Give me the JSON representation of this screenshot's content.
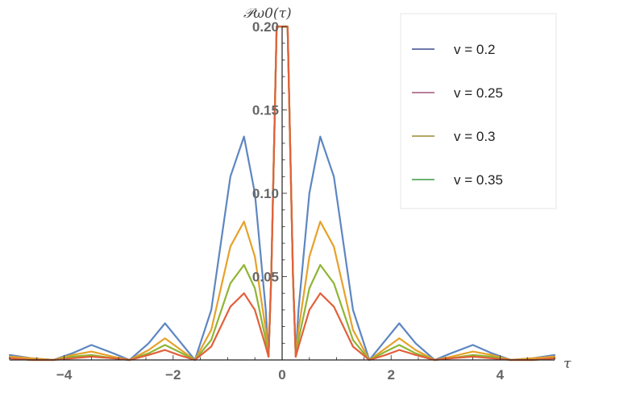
{
  "chart_data": {
    "type": "line",
    "title": "",
    "xlabel": "τ",
    "ylabel": "𝒫ω0(τ)",
    "xlim": [
      -5,
      5
    ],
    "ylim": [
      0,
      0.2
    ],
    "x_ticks": [
      -4,
      -2,
      0,
      2,
      4
    ],
    "x_tick_labels": [
      "−4",
      "−2",
      "0",
      "2",
      "4"
    ],
    "y_ticks": [
      0.05,
      0.1,
      0.15,
      0.2
    ],
    "y_tick_labels": [
      "0.05",
      "0.10",
      "0.15",
      "0.20"
    ],
    "grid": false,
    "legend_position": "top-right",
    "legend": [
      {
        "label": "v = 0.2",
        "color": "#3d4a8f"
      },
      {
        "label": "v = 0.25",
        "color": "#a0527a"
      },
      {
        "label": "v = 0.3",
        "color": "#9c8a2e"
      },
      {
        "label": "v = 0.35",
        "color": "#3c9a45"
      }
    ],
    "series": [
      {
        "color": "#5e86c1",
        "x": [
          -5.0,
          -4.6,
          -4.2,
          -3.85,
          -3.5,
          -3.1,
          -2.8,
          -2.45,
          -2.15,
          -1.9,
          -1.6,
          -1.3,
          -0.95,
          -0.7,
          -0.5,
          -0.3,
          -0.25,
          -0.2,
          -0.1,
          0.0,
          0.1,
          0.2,
          0.25,
          0.3,
          0.5,
          0.7,
          0.95,
          1.3,
          1.6,
          1.9,
          2.15,
          2.45,
          2.8,
          3.1,
          3.5,
          3.85,
          4.2,
          4.6,
          5.0
        ],
        "y": [
          0.003,
          0.001,
          0.0,
          0.004,
          0.009,
          0.004,
          0.0,
          0.01,
          0.022,
          0.012,
          0.0,
          0.03,
          0.11,
          0.134,
          0.1,
          0.03,
          0.002,
          0.05,
          0.2,
          0.2,
          0.2,
          0.05,
          0.002,
          0.03,
          0.1,
          0.134,
          0.11,
          0.03,
          0.0,
          0.012,
          0.022,
          0.01,
          0.0,
          0.004,
          0.009,
          0.004,
          0.0,
          0.001,
          0.003
        ]
      },
      {
        "color": "#e6a12a",
        "x": [
          -5.0,
          -4.6,
          -4.2,
          -3.85,
          -3.5,
          -3.1,
          -2.8,
          -2.45,
          -2.15,
          -1.9,
          -1.6,
          -1.3,
          -0.95,
          -0.7,
          -0.5,
          -0.3,
          -0.25,
          -0.2,
          -0.1,
          0.0,
          0.1,
          0.2,
          0.25,
          0.3,
          0.5,
          0.7,
          0.95,
          1.3,
          1.6,
          1.9,
          2.15,
          2.45,
          2.8,
          3.1,
          3.5,
          3.85,
          4.2,
          4.6,
          5.0
        ],
        "y": [
          0.002,
          0.001,
          0.0,
          0.003,
          0.005,
          0.002,
          0.0,
          0.006,
          0.013,
          0.007,
          0.0,
          0.018,
          0.068,
          0.083,
          0.062,
          0.018,
          0.002,
          0.05,
          0.2,
          0.2,
          0.2,
          0.05,
          0.002,
          0.018,
          0.062,
          0.083,
          0.068,
          0.018,
          0.0,
          0.007,
          0.013,
          0.006,
          0.0,
          0.002,
          0.005,
          0.003,
          0.0,
          0.001,
          0.002
        ]
      },
      {
        "color": "#8fb534",
        "x": [
          -5.0,
          -4.6,
          -4.2,
          -3.85,
          -3.5,
          -3.1,
          -2.8,
          -2.45,
          -2.15,
          -1.9,
          -1.6,
          -1.3,
          -0.95,
          -0.7,
          -0.5,
          -0.3,
          -0.25,
          -0.2,
          -0.1,
          0.0,
          0.1,
          0.2,
          0.25,
          0.3,
          0.5,
          0.7,
          0.95,
          1.3,
          1.6,
          1.9,
          2.15,
          2.45,
          2.8,
          3.1,
          3.5,
          3.85,
          4.2,
          4.6,
          5.0
        ],
        "y": [
          0.001,
          0.0,
          0.0,
          0.002,
          0.003,
          0.001,
          0.0,
          0.004,
          0.009,
          0.005,
          0.0,
          0.012,
          0.046,
          0.057,
          0.043,
          0.012,
          0.002,
          0.05,
          0.2,
          0.2,
          0.2,
          0.05,
          0.002,
          0.012,
          0.043,
          0.057,
          0.046,
          0.012,
          0.0,
          0.005,
          0.009,
          0.004,
          0.0,
          0.001,
          0.003,
          0.002,
          0.0,
          0.0,
          0.001
        ]
      },
      {
        "color": "#e2603a",
        "x": [
          -5.0,
          -4.6,
          -4.2,
          -3.85,
          -3.5,
          -3.1,
          -2.8,
          -2.45,
          -2.15,
          -1.9,
          -1.6,
          -1.3,
          -0.95,
          -0.7,
          -0.5,
          -0.3,
          -0.25,
          -0.2,
          -0.1,
          0.0,
          0.1,
          0.2,
          0.25,
          0.3,
          0.5,
          0.7,
          0.95,
          1.3,
          1.6,
          1.9,
          2.15,
          2.45,
          2.8,
          3.1,
          3.5,
          3.85,
          4.2,
          4.6,
          5.0
        ],
        "y": [
          0.001,
          0.0,
          0.0,
          0.001,
          0.002,
          0.001,
          0.0,
          0.003,
          0.006,
          0.003,
          0.0,
          0.008,
          0.032,
          0.04,
          0.03,
          0.008,
          0.002,
          0.05,
          0.2,
          0.2,
          0.2,
          0.05,
          0.002,
          0.008,
          0.03,
          0.04,
          0.032,
          0.008,
          0.0,
          0.003,
          0.006,
          0.003,
          0.0,
          0.001,
          0.002,
          0.001,
          0.0,
          0.0,
          0.001
        ]
      }
    ]
  }
}
